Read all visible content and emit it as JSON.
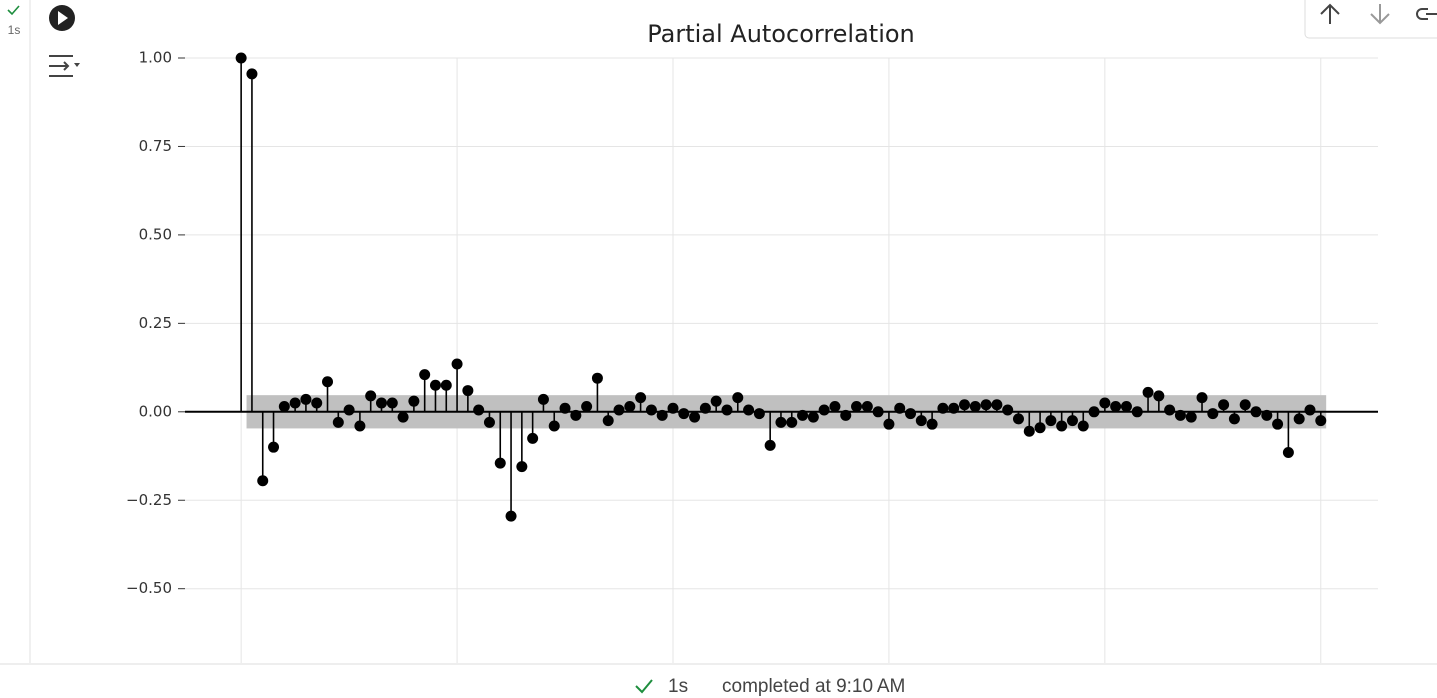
{
  "cell": {
    "exec_time": "1s"
  },
  "chart_data": {
    "type": "stem",
    "title": "Partial Autocorrelation",
    "x": [
      0,
      1,
      2,
      3,
      4,
      5,
      6,
      7,
      8,
      9,
      10,
      11,
      12,
      13,
      14,
      15,
      16,
      17,
      18,
      19,
      20,
      21,
      22,
      23,
      24,
      25,
      26,
      27,
      28,
      29,
      30,
      31,
      32,
      33,
      34,
      35,
      36,
      37,
      38,
      39,
      40,
      41,
      42,
      43,
      44,
      45,
      46,
      47,
      48,
      49,
      50,
      51,
      52,
      53,
      54,
      55,
      56,
      57,
      58,
      59,
      60,
      61,
      62,
      63,
      64,
      65,
      66,
      67,
      68,
      69,
      70,
      71,
      72,
      73,
      74,
      75,
      76,
      77,
      78,
      79,
      80,
      81,
      82,
      83,
      84,
      85,
      86,
      87,
      88,
      89,
      90,
      91,
      92,
      93,
      94,
      95,
      96,
      97,
      98,
      99,
      100
    ],
    "values": [
      1.0,
      0.955,
      -0.195,
      -0.1,
      0.015,
      0.025,
      0.035,
      0.025,
      0.085,
      -0.03,
      0.005,
      -0.04,
      0.045,
      0.025,
      0.025,
      -0.015,
      0.03,
      0.105,
      0.075,
      0.075,
      0.135,
      0.06,
      0.005,
      -0.03,
      -0.145,
      -0.295,
      -0.155,
      -0.075,
      0.035,
      -0.04,
      0.01,
      -0.01,
      0.015,
      0.095,
      -0.025,
      0.005,
      0.015,
      0.04,
      0.005,
      -0.01,
      0.01,
      -0.005,
      -0.015,
      0.01,
      0.03,
      0.005,
      0.04,
      0.005,
      -0.005,
      -0.095,
      -0.03,
      -0.03,
      -0.01,
      -0.015,
      0.005,
      0.015,
      -0.01,
      0.015,
      0.015,
      0,
      -0.035,
      0.01,
      -0.005,
      -0.025,
      -0.035,
      0.01,
      0.01,
      0.02,
      0.015,
      0.02,
      0.02,
      0.005,
      -0.02,
      -0.055,
      -0.045,
      -0.025,
      -0.04,
      -0.025,
      -0.04,
      0,
      0.025,
      0.015,
      0.015,
      0,
      0.055,
      0.045,
      0.005,
      -0.01,
      -0.015,
      0.04,
      -0.005,
      0.02,
      -0.02,
      0.02,
      0,
      -0.01,
      -0.035,
      -0.115,
      -0.02,
      0.005,
      -0.025
    ],
    "confidence_band": [
      -0.047,
      0.047
    ],
    "color": "#000000",
    "band_color": "#c0c0c0",
    "xlim": [
      -5.2,
      105.3
    ],
    "ylim": [
      -0.71,
      1.0
    ],
    "xticks": [
      0,
      20,
      40,
      60,
      80,
      100
    ],
    "yticks": [
      {
        "value": 1.0,
        "label": "1.00"
      },
      {
        "value": 0.75,
        "label": "0.75"
      },
      {
        "value": 0.5,
        "label": "0.50"
      },
      {
        "value": 0.25,
        "label": "0.25"
      },
      {
        "value": 0.0,
        "label": "0.00"
      },
      {
        "value": -0.25,
        "label": "−0.25"
      },
      {
        "value": -0.5,
        "label": "−0.50"
      }
    ],
    "grid": true
  },
  "status_bar": {
    "time": "1s",
    "message": "completed at 9:10 AM"
  }
}
